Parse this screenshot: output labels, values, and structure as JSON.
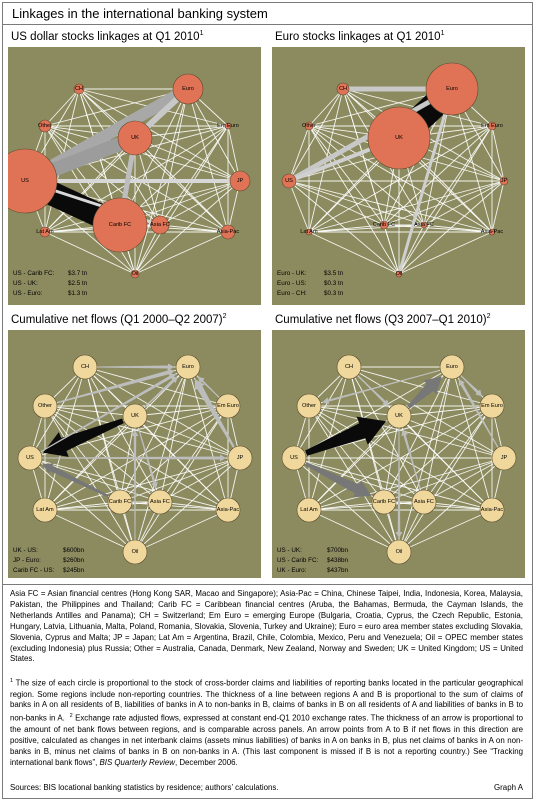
{
  "title": "Linkages in the international banking system",
  "colors": {
    "panel_bg": "#8c8b5f",
    "node_orange": "#e07356",
    "node_tan": "#f0d89c",
    "line_white": "#ffffff",
    "flow_black": "#0a0a0a",
    "flow_grey": "#777777",
    "flow_lightgrey": "#bdbdbd"
  },
  "panels": [
    {
      "title": "US dollar stocks linkages at Q1 2010",
      "footnote": "1",
      "node_style": "orange",
      "legend": [
        {
          "label": "US - Carib FC:",
          "value": "$3.7 tn"
        },
        {
          "label": "US - UK:",
          "value": "$2.5 tn"
        },
        {
          "label": "US - Euro:",
          "value": "$1.3 tn"
        }
      ]
    },
    {
      "title": "Euro stocks linkages at Q1 2010",
      "footnote": "1",
      "node_style": "orange",
      "legend": [
        {
          "label": "Euro - UK:",
          "value": "$3.5 tn"
        },
        {
          "label": "Euro - US:",
          "value": "$0.3 tn"
        },
        {
          "label": "Euro - CH:",
          "value": "$0.3 tn"
        }
      ]
    },
    {
      "title": "Cumulative net flows (Q1 2000–Q2 2007)",
      "footnote": "2",
      "node_style": "tan",
      "legend": [
        {
          "label": "UK - US:",
          "value": "$600bn"
        },
        {
          "label": "JP - Euro:",
          "value": "$260bn"
        },
        {
          "label": "Carib FC - US:",
          "value": "$245bn"
        }
      ]
    },
    {
      "title": "Cumulative net flows (Q3 2007–Q1 2010)",
      "footnote": "2",
      "node_style": "tan",
      "legend": [
        {
          "label": "US - UK:",
          "value": "$700bn"
        },
        {
          "label": "US - Carib FC:",
          "value": "$438bn"
        },
        {
          "label": "UK - Euro:",
          "value": "$437bn"
        }
      ]
    }
  ],
  "node_labels": {
    "CH": "CH",
    "Euro": "Euro",
    "Other": "Other",
    "UK": "UK",
    "EmEuro": "Em Euro",
    "US": "US",
    "JP": "JP",
    "CaribFC": "Carib FC",
    "LatAm": "Lat Am",
    "AsiaFC": "Asia FC",
    "AsiaPac": "Asia-Pac",
    "Oil": "Oil"
  },
  "glossary": "Asia FC = Asian financial centres (Hong Kong SAR, Macao and Singapore); Asia-Pac = China, Chinese Taipei, India, Indonesia, Korea, Malaysia, Pakistan, the Philippines and Thailand; Carib FC = Caribbean financial centres (Aruba, the Bahamas, Bermuda, the Cayman Islands, the Netherlands Antilles and Panama); CH = Switzerland; Em Euro = emerging Europe (Bulgaria, Croatia, Cyprus, the Czech Republic, Estonia, Hungary, Latvia, Lithuania, Malta, Poland, Romania, Slovakia, Slovenia, Turkey and Ukraine); Euro = euro area member states excluding Slovakia, Slovenia, Cyprus and Malta; JP = Japan; Lat Am = Argentina, Brazil, Chile, Colombia, Mexico, Peru and Venezuela; Oil = OPEC member states (excluding Indonesia) plus Russia; Other = Australia, Canada, Denmark, New Zealand, Norway and Sweden; UK = United Kingdom; US = United States.",
  "notes": {
    "n1_mark": "1",
    "n1": "The size of each circle is proportional to the stock of cross-border claims and liabilities of reporting banks located in the particular geographical region. Some regions include non-reporting countries. The thickness of a line between regions A and B is proportional to the sum of claims of banks in A on all residents of B, liabilities of banks in A to non-banks in B, claims of banks in B on all residents of A and liabilities of banks in B to non-banks in A.",
    "n2_mark": "2",
    "n2_a": "Exchange rate adjusted flows, expressed at constant end-Q1 2010 exchange rates. The thickness of an arrow is proportional to the amount of net bank flows between regions, and is comparable across panels. An arrow points from A to B if net flows in this direction are positive, calculated as changes in net interbank claims (assets minus liabilities) of banks in A on banks in B, plus net claims of banks in A on non-banks in B, minus net claims of banks in B on non-banks in A. (This last component is missed if B is not a reporting country.) See “Tracking international bank flows”,",
    "n2_ref": "BIS Quarterly Review",
    "n2_b": ", December 2006."
  },
  "sources": "Sources: BIS locational banking statistics by residence; authors’ calculations.",
  "graph_id": "Graph A"
}
